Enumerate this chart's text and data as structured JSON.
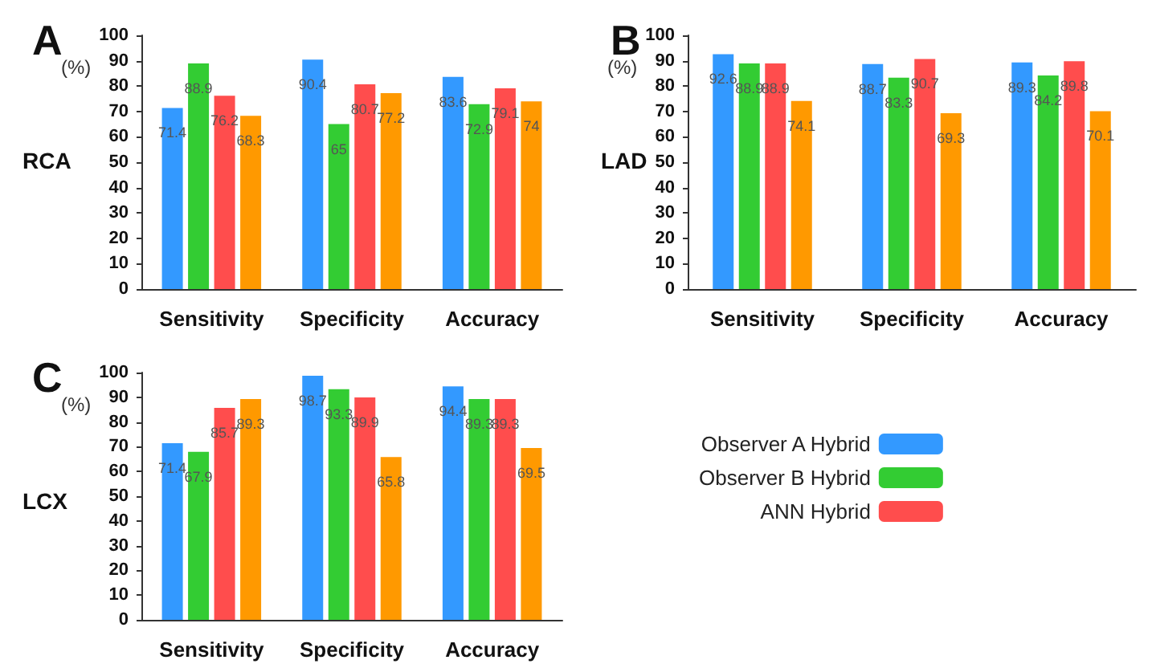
{
  "chart_data": [
    {
      "type": "bar",
      "title": "A",
      "ylabel": "(%)",
      "annotations": [
        "RCA"
      ],
      "categories": [
        "Sensitivity",
        "Specificity",
        "Accuracy"
      ],
      "ylim": [
        0,
        100
      ],
      "yticks": [
        0,
        10,
        20,
        30,
        40,
        50,
        60,
        70,
        80,
        90,
        100
      ],
      "grid": false,
      "legend": false,
      "data_labels": true,
      "series": [
        {
          "color": "#3399ff",
          "values": [
            71.4,
            90.4,
            83.6
          ]
        },
        {
          "color": "#33cc33",
          "values": [
            88.9,
            65,
            72.9
          ]
        },
        {
          "color": "#ff4d4d",
          "values": [
            76.2,
            80.7,
            79.1
          ]
        },
        {
          "color": "#ff9900",
          "values": [
            68.3,
            77.2,
            74
          ]
        }
      ]
    },
    {
      "type": "bar",
      "title": "B",
      "ylabel": "(%)",
      "annotations": [
        "LAD"
      ],
      "categories": [
        "Sensitivity",
        "Specificity",
        "Accuracy"
      ],
      "ylim": [
        0,
        100
      ],
      "yticks": [
        0,
        10,
        20,
        30,
        40,
        50,
        60,
        70,
        80,
        90,
        100
      ],
      "grid": false,
      "legend": false,
      "data_labels": true,
      "series": [
        {
          "color": "#3399ff",
          "values": [
            92.6,
            88.7,
            89.3
          ]
        },
        {
          "color": "#33cc33",
          "values": [
            88.9,
            83.3,
            84.2
          ]
        },
        {
          "color": "#ff4d4d",
          "values": [
            88.9,
            90.7,
            89.8
          ]
        },
        {
          "color": "#ff9900",
          "values": [
            74.1,
            69.3,
            70.1
          ]
        }
      ]
    },
    {
      "type": "bar",
      "title": "C",
      "ylabel": "(%)",
      "annotations": [
        "LCX"
      ],
      "categories": [
        "Sensitivity",
        "Specificity",
        "Accuracy"
      ],
      "ylim": [
        0,
        100
      ],
      "yticks": [
        0,
        10,
        20,
        30,
        40,
        50,
        60,
        70,
        80,
        90,
        100
      ],
      "grid": false,
      "legend": "right",
      "data_labels": true,
      "series": [
        {
          "name": "Observer A Hybrid",
          "color": "#3399ff",
          "values": [
            71.4,
            98.7,
            94.4
          ]
        },
        {
          "name": "Observer B Hybrid",
          "color": "#33cc33",
          "values": [
            67.9,
            93.3,
            89.3
          ]
        },
        {
          "name": "ANN Hybrid",
          "color": "#ff4d4d",
          "values": [
            85.7,
            89.9,
            89.3
          ]
        },
        {
          "color": "#ff9900",
          "values": [
            89.3,
            65.8,
            69.5
          ]
        }
      ]
    }
  ]
}
